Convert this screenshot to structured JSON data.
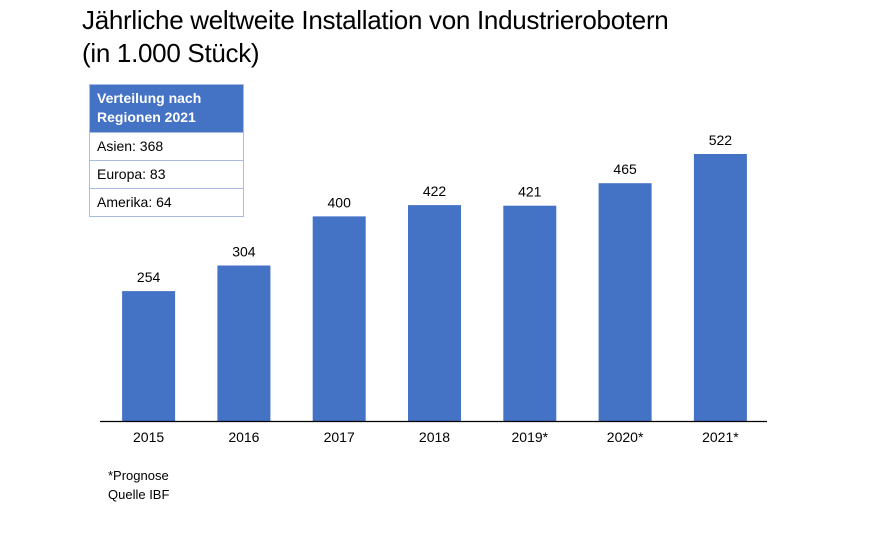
{
  "title_lines": [
    "Jährliche weltweite Installation von Industrierobotern",
    "(in 1.000 Stück)"
  ],
  "region_box": {
    "header_lines": [
      "Verteilung nach",
      "Regionen 2021"
    ],
    "rows": [
      "Asien: 368",
      "Europa: 83",
      "Amerika: 64"
    ]
  },
  "footnotes": [
    "*Prognose",
    "Quelle IBF"
  ],
  "colors": {
    "bar": "#4472c4",
    "header_bg": "#4472c4",
    "box_border": "#a9bbe0"
  },
  "chart_data": {
    "type": "bar",
    "title": "Jährliche weltweite Installation von Industrierobotern (in 1.000 Stück)",
    "xlabel": "",
    "ylabel": "",
    "categories": [
      "2015",
      "2016",
      "2017",
      "2018",
      "2019*",
      "2020*",
      "2021*"
    ],
    "values": [
      254,
      304,
      400,
      422,
      421,
      465,
      522
    ],
    "data_labels": [
      "254",
      "304",
      "400",
      "422",
      "421",
      "465",
      "522"
    ],
    "ylim": [
      0,
      522
    ],
    "grid": false,
    "y_axis_visible": false,
    "legend": "none",
    "annotations": [
      "*Prognose",
      "Quelle IBF"
    ]
  }
}
